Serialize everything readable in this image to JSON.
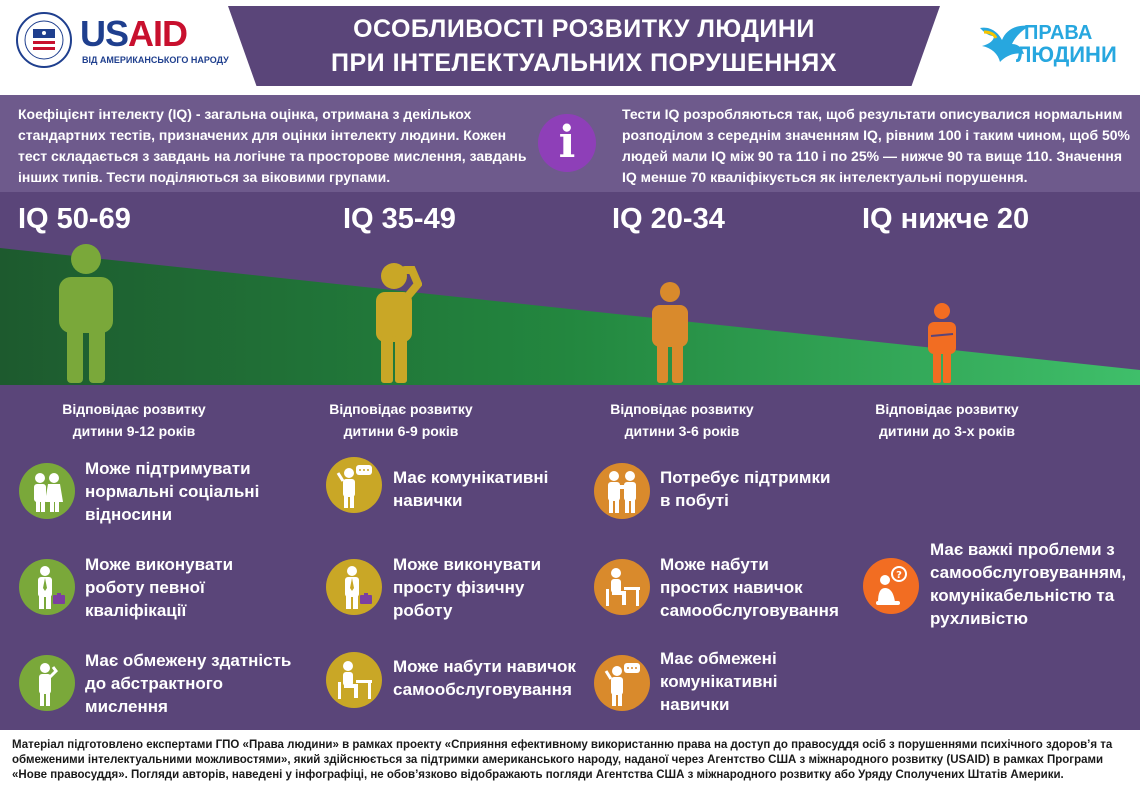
{
  "header": {
    "title_line1": "ОСОБЛИВОСТІ РОЗВИТКУ ЛЮДИНИ",
    "title_line2": "ПРИ  ІНТЕЛЕКТУАЛЬНИХ ПОРУШЕННЯХ",
    "usaid": {
      "word_us": "US",
      "word_aid": "AID",
      "subtitle": "ВІД АМЕРИКАНСЬКОГО НАРОДУ",
      "seal_text": "UNITED STATES AGENCY INTERNATIONAL DEVELOPMENT"
    },
    "partner": {
      "line1": "ПРАВА",
      "line2": "ЛЮДИНИ"
    }
  },
  "intro": {
    "left": "Коефіцієнт інтелекту (IQ) - загальна оцінка, отримана з декількох стандартних тестів, призначених для оцінки інтелекту людини. Кожен тест складається з завдань на логічне та просторове мислення, завдань інших типів. Тести поділяються за віковими групами.",
    "info_symbol": "i",
    "right": "Тести IQ розробляються так, щоб результати описувалися нормальним розподілом з середнім значенням IQ, рівним 100 і таким чином, щоб 50% людей мали IQ між 90 та 110 і по 25% — нижче 90 та вище 110. Значення IQ менше 70 кваліфікується як інтелектуальні  порушення."
  },
  "columns": [
    {
      "iq": "IQ 50-69",
      "caption_l1": "Відповідає розвитку",
      "caption_l2": "дитини 9-12 років",
      "color": "#7aa83a",
      "items": [
        {
          "icon": "couple-icon",
          "lines": [
            "Може підтримувати",
            "нормальні соціальні",
            "відносини"
          ]
        },
        {
          "icon": "worker-briefcase-icon",
          "lines": [
            "Може виконувати",
            "роботу певної",
            "кваліфікації"
          ]
        },
        {
          "icon": "thinking-person-icon",
          "lines": [
            "Має  обмежену здатність",
            "до абстрактного",
            "мислення"
          ]
        }
      ]
    },
    {
      "iq": "IQ 35-49",
      "caption_l1": "Відповідає розвитку",
      "caption_l2": "дитини 6-9 років",
      "color": "#c9a726",
      "items": [
        {
          "icon": "speech-person-icon",
          "lines": [
            "Має комунікативні",
            "навички"
          ]
        },
        {
          "icon": "worker-briefcase-icon",
          "lines": [
            "Може виконувати",
            "просту фізичну",
            "роботу"
          ]
        },
        {
          "icon": "seated-desk-icon",
          "lines": [
            "Може  набути навичок",
            "самообслуговування"
          ]
        }
      ]
    },
    {
      "iq": "IQ 20-34",
      "caption_l1": "Відповідає  розвитку",
      "caption_l2": "дитини 3-6 років",
      "color": "#d98a2c",
      "items": [
        {
          "icon": "support-couple-icon",
          "lines": [
            "Потребує підтримки",
            "в побуті"
          ]
        },
        {
          "icon": "seated-desk-icon",
          "lines": [
            "Може набути",
            "простих навичок",
            "самообслуговування"
          ]
        },
        {
          "icon": "speech-person-icon",
          "lines": [
            "Має обмежені",
            "комунікативні",
            "навички"
          ]
        }
      ]
    },
    {
      "iq": "IQ нижче 20",
      "caption_l1": "Відповідає розвитку",
      "caption_l2": "дитини до 3-х років",
      "color": "#f26d22",
      "items": [
        {
          "icon": "question-seated-icon",
          "lines": [
            "Має  важкі проблеми з",
            "самообслуговуванням,",
            "комунікабельністю та",
            "рухливістю"
          ]
        }
      ]
    }
  ],
  "footer": {
    "text": "Матеріал підготовлено експертами ГПО «Права людини» в рамках проекту «Сприяння ефективному використанню права на доступ до правосуддя осіб з порушеннями психічного здоров’я та обмеженими інтелектуальними можливостями», який здійснюється за підтримки американського народу, наданої через Агентство США з міжнародного розвитку (USAID) в рамках Програми «Нове правосуддя». Погляди авторів, наведені у інфографіці, не обов’язково відображають погляди Агентства США з міжнародного розвитку або Уряду Сполучених Штатів Америки."
  }
}
